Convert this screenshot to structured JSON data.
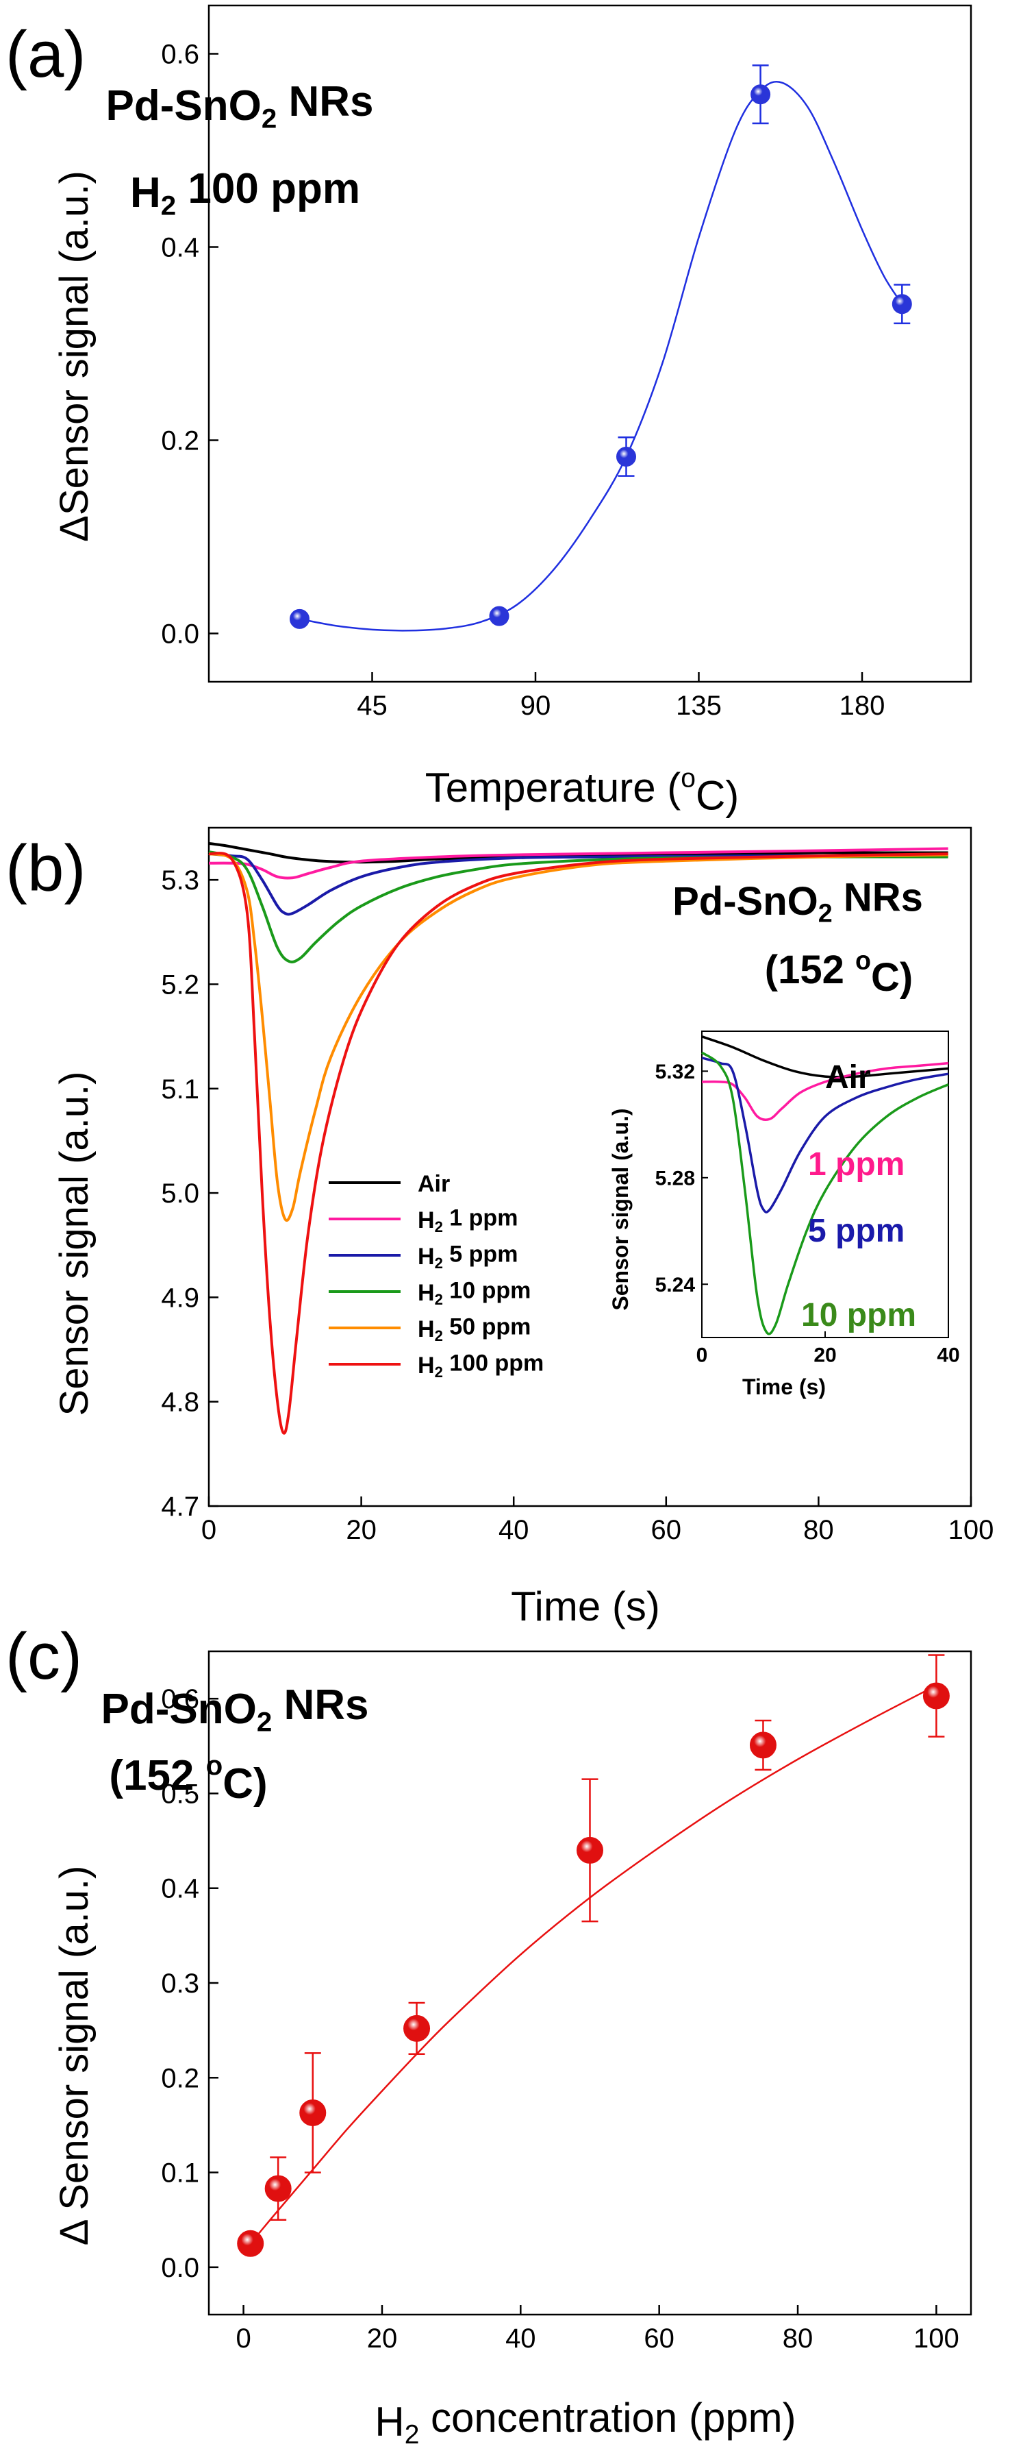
{
  "colors": {
    "axis": "#000000",
    "panel_a_series": "#1f2fe0",
    "panel_a_marker": "#2a35d8",
    "panel_c_series": "#e81010",
    "panel_c_marker": "#e01010",
    "air": "#000000",
    "h2_1": "#ff1aa0",
    "h2_5": "#1a1aa8",
    "h2_10": "#1a9a1a",
    "h2_50": "#ff8c00",
    "h2_100": "#ee1111",
    "inset_1ppm_text": "#ff1a8c",
    "inset_5ppm_text": "#1a1aaa",
    "inset_10ppm_text": "#3a8a1a"
  },
  "chart_data": [
    {
      "panel": "(a)",
      "type": "scatter",
      "title": "Pd-SnO2 NRs",
      "subtitle": "H2 100 ppm",
      "title_parts": [
        {
          "t": "Pd-SnO"
        },
        {
          "t": "2",
          "sub": true
        },
        {
          "t": " NRs"
        }
      ],
      "subtitle_parts": [
        {
          "t": "H"
        },
        {
          "t": "2",
          "sub": true
        },
        {
          "t": " 100 ppm"
        }
      ],
      "xlabel": "Temperature (oC)",
      "xlabel_parts": [
        {
          "t": "Temperature ("
        },
        {
          "t": "o",
          "sup": true
        },
        {
          "t": "C)"
        }
      ],
      "ylabel": "ΔSensor signal (a.u.)",
      "xlim": [
        0,
        210
      ],
      "ylim": [
        -0.05,
        0.65
      ],
      "xticks": [
        45,
        90,
        135,
        180
      ],
      "xticklabels": [
        "45",
        "90",
        "135",
        "180"
      ],
      "yticks": [
        0.0,
        0.2,
        0.4,
        0.6
      ],
      "yticklabels": [
        "0.0",
        "0.2",
        "0.4",
        "0.6"
      ],
      "grid": false,
      "points": [
        {
          "x": 25,
          "y": 0.015,
          "err": 0.0
        },
        {
          "x": 80,
          "y": 0.018,
          "err": 0.0
        },
        {
          "x": 115,
          "y": 0.183,
          "err": 0.02
        },
        {
          "x": 152,
          "y": 0.558,
          "err": 0.03
        },
        {
          "x": 191,
          "y": 0.341,
          "err": 0.02
        }
      ],
      "fit": [
        {
          "x": 25,
          "y": 0.015
        },
        {
          "x": 35,
          "y": 0.008
        },
        {
          "x": 45,
          "y": 0.004
        },
        {
          "x": 55,
          "y": 0.003
        },
        {
          "x": 65,
          "y": 0.005
        },
        {
          "x": 75,
          "y": 0.012
        },
        {
          "x": 85,
          "y": 0.03
        },
        {
          "x": 95,
          "y": 0.066
        },
        {
          "x": 105,
          "y": 0.118
        },
        {
          "x": 115,
          "y": 0.183
        },
        {
          "x": 125,
          "y": 0.28
        },
        {
          "x": 135,
          "y": 0.41
        },
        {
          "x": 145,
          "y": 0.52
        },
        {
          "x": 152,
          "y": 0.562
        },
        {
          "x": 158,
          "y": 0.57
        },
        {
          "x": 165,
          "y": 0.545
        },
        {
          "x": 172,
          "y": 0.49
        },
        {
          "x": 180,
          "y": 0.418
        },
        {
          "x": 186,
          "y": 0.37
        },
        {
          "x": 191,
          "y": 0.341
        }
      ]
    },
    {
      "panel": "(b)",
      "type": "line",
      "title": "Pd-SnO2 NRs",
      "subtitle": "(152 oC)",
      "title_parts": [
        {
          "t": "Pd-SnO"
        },
        {
          "t": "2",
          "sub": true
        },
        {
          "t": " NRs"
        }
      ],
      "subtitle_parts": [
        {
          "t": "(152 "
        },
        {
          "t": "o",
          "sup": true
        },
        {
          "t": "C)"
        }
      ],
      "xlabel": "Time (s)",
      "ylabel": "Sensor signal (a.u.)",
      "xlim": [
        0,
        100
      ],
      "ylim": [
        4.7,
        5.35
      ],
      "xticks": [
        0,
        20,
        40,
        60,
        80,
        100
      ],
      "xticklabels": [
        "0",
        "20",
        "40",
        "60",
        "80",
        "100"
      ],
      "yticks": [
        4.7,
        4.8,
        4.9,
        5.0,
        5.1,
        5.2,
        5.3
      ],
      "yticklabels": [
        "4.7",
        "4.8",
        "4.9",
        "5.0",
        "5.1",
        "5.2",
        "5.3"
      ],
      "grid": false,
      "legend_position": "bottom-left",
      "series": [
        {
          "name": "Air",
          "label_parts": [
            {
              "t": "Air"
            }
          ],
          "color_key": "air",
          "x": [
            0,
            2,
            5,
            8,
            10,
            12,
            15,
            20,
            25,
            30,
            40,
            50,
            60,
            70,
            80,
            90,
            97
          ],
          "y": [
            5.335,
            5.333,
            5.329,
            5.325,
            5.322,
            5.32,
            5.318,
            5.317,
            5.318,
            5.32,
            5.322,
            5.323,
            5.324,
            5.325,
            5.326,
            5.326,
            5.326
          ]
        },
        {
          "name": "H2 1 ppm",
          "label_parts": [
            {
              "t": "H"
            },
            {
              "t": "2",
              "sub": true
            },
            {
              "t": " 1 ppm"
            }
          ],
          "color_key": "h2_1",
          "x": [
            0,
            3,
            5,
            7,
            9,
            11,
            13,
            16,
            20,
            30,
            40,
            60,
            80,
            97
          ],
          "y": [
            5.316,
            5.316,
            5.315,
            5.31,
            5.303,
            5.302,
            5.306,
            5.312,
            5.318,
            5.322,
            5.324,
            5.326,
            5.328,
            5.33
          ]
        },
        {
          "name": "H2 5 ppm",
          "label_parts": [
            {
              "t": "H"
            },
            {
              "t": "2",
              "sub": true
            },
            {
              "t": " 5 ppm"
            }
          ],
          "color_key": "h2_5",
          "x": [
            0,
            3,
            5,
            7,
            9,
            10,
            11,
            13,
            16,
            20,
            25,
            30,
            40,
            50,
            70,
            97
          ],
          "y": [
            5.325,
            5.323,
            5.32,
            5.3,
            5.275,
            5.268,
            5.268,
            5.276,
            5.29,
            5.303,
            5.312,
            5.317,
            5.321,
            5.322,
            5.323,
            5.323
          ]
        },
        {
          "name": "H2 10 ppm",
          "label_parts": [
            {
              "t": "H"
            },
            {
              "t": "2",
              "sub": true
            },
            {
              "t": " 10 ppm"
            }
          ],
          "color_key": "h2_10",
          "x": [
            0,
            3,
            5,
            7,
            9,
            10.5,
            12,
            14,
            17,
            20,
            25,
            30,
            35,
            40,
            50,
            60,
            80,
            97
          ],
          "y": [
            5.327,
            5.322,
            5.31,
            5.275,
            5.235,
            5.222,
            5.225,
            5.24,
            5.26,
            5.275,
            5.292,
            5.303,
            5.31,
            5.315,
            5.319,
            5.321,
            5.322,
            5.322
          ]
        },
        {
          "name": "H2 50 ppm",
          "label_parts": [
            {
              "t": "H"
            },
            {
              "t": "2",
              "sub": true
            },
            {
              "t": " 50 ppm"
            }
          ],
          "color_key": "h2_50",
          "x": [
            0,
            3,
            5,
            6,
            7,
            8,
            9,
            10,
            11,
            12,
            14,
            16,
            20,
            25,
            30,
            35,
            40,
            50,
            60,
            80,
            97
          ],
          "y": [
            5.325,
            5.32,
            5.29,
            5.24,
            5.17,
            5.09,
            5.01,
            4.975,
            4.985,
            5.02,
            5.08,
            5.13,
            5.19,
            5.24,
            5.27,
            5.29,
            5.302,
            5.314,
            5.318,
            5.322,
            5.324
          ]
        },
        {
          "name": "H2 100 ppm",
          "label_parts": [
            {
              "t": "H"
            },
            {
              "t": "2",
              "sub": true
            },
            {
              "t": " 100 ppm"
            }
          ],
          "color_key": "h2_100",
          "x": [
            0,
            3,
            5,
            6,
            7,
            8,
            9,
            9.8,
            10.5,
            11.5,
            13,
            15,
            18,
            21,
            25,
            30,
            35,
            40,
            50,
            60,
            80,
            97
          ],
          "y": [
            5.325,
            5.32,
            5.27,
            5.15,
            5.0,
            4.88,
            4.8,
            4.77,
            4.79,
            4.86,
            4.96,
            5.05,
            5.135,
            5.19,
            5.24,
            5.275,
            5.295,
            5.306,
            5.316,
            5.32,
            5.323,
            5.325
          ]
        }
      ],
      "inset": {
        "type": "line",
        "xlabel": "Time (s)",
        "ylabel": "Sensor signal (a.u.)",
        "xlim": [
          0,
          40
        ],
        "ylim": [
          5.22,
          5.335
        ],
        "xticks": [
          0,
          20,
          40
        ],
        "xticklabels": [
          "0",
          "20",
          "40"
        ],
        "yticks": [
          5.24,
          5.28,
          5.32
        ],
        "yticklabels": [
          "5.24",
          "5.28",
          "5.32"
        ],
        "series": [
          {
            "name": "Air",
            "color_key": "air",
            "text_color_key": "air",
            "x": [
              0,
              5,
              10,
              15,
              20,
              25,
              30,
              35,
              40
            ],
            "y": [
              5.333,
              5.329,
              5.324,
              5.32,
              5.318,
              5.318,
              5.319,
              5.32,
              5.321
            ]
          },
          {
            "name": "1 ppm",
            "color_key": "h2_1",
            "text_color_key": "inset_1ppm_text",
            "x": [
              0,
              3,
              5,
              7,
              9,
              11,
              13,
              16,
              20,
              25,
              30,
              35,
              40
            ],
            "y": [
              5.316,
              5.316,
              5.315,
              5.31,
              5.303,
              5.302,
              5.306,
              5.312,
              5.316,
              5.319,
              5.321,
              5.322,
              5.323
            ]
          },
          {
            "name": "5 ppm",
            "color_key": "h2_5",
            "text_color_key": "inset_5ppm_text",
            "x": [
              0,
              3,
              5,
              7,
              9,
              10,
              11,
              13,
              16,
              20,
              25,
              30,
              35,
              40
            ],
            "y": [
              5.325,
              5.323,
              5.32,
              5.3,
              5.275,
              5.268,
              5.268,
              5.276,
              5.29,
              5.303,
              5.31,
              5.314,
              5.317,
              5.319
            ]
          },
          {
            "name": "10 ppm",
            "color_key": "h2_10",
            "text_color_key": "inset_10ppm_text",
            "x": [
              0,
              3,
              5,
              7,
              9,
              10.5,
              12,
              14,
              17,
              20,
              25,
              30,
              35,
              40
            ],
            "y": [
              5.327,
              5.322,
              5.31,
              5.275,
              5.235,
              5.222,
              5.225,
              5.24,
              5.26,
              5.275,
              5.292,
              5.303,
              5.31,
              5.315
            ]
          }
        ]
      }
    },
    {
      "panel": "(c)",
      "type": "scatter",
      "title": "Pd-SnO2 NRs",
      "subtitle": "(152 oC)",
      "title_parts": [
        {
          "t": "Pd-SnO"
        },
        {
          "t": "2",
          "sub": true
        },
        {
          "t": " NRs"
        }
      ],
      "subtitle_parts": [
        {
          "t": "(152 "
        },
        {
          "t": "o",
          "sup": true
        },
        {
          "t": "C)"
        }
      ],
      "xlabel": "H2 concentration (ppm)",
      "xlabel_parts": [
        {
          "t": "H"
        },
        {
          "t": "2",
          "sub": true
        },
        {
          "t": " concentration (ppm)"
        }
      ],
      "ylabel": "Δ Sensor signal (a.u.)",
      "xlim": [
        -5,
        105
      ],
      "ylim": [
        -0.05,
        0.65
      ],
      "xticks": [
        0,
        20,
        40,
        60,
        80,
        100
      ],
      "xticklabels": [
        "0",
        "20",
        "40",
        "60",
        "80",
        "100"
      ],
      "yticks": [
        0.0,
        0.1,
        0.2,
        0.3,
        0.4,
        0.5,
        0.6
      ],
      "yticklabels": [
        "0.0",
        "0.1",
        "0.2",
        "0.3",
        "0.4",
        "0.5",
        "0.6"
      ],
      "grid": false,
      "points": [
        {
          "x": 1,
          "y": 0.025,
          "err": 0.0
        },
        {
          "x": 5,
          "y": 0.083,
          "err": 0.033
        },
        {
          "x": 10,
          "y": 0.163,
          "err": 0.063
        },
        {
          "x": 25,
          "y": 0.252,
          "err": 0.027
        },
        {
          "x": 50,
          "y": 0.44,
          "err": 0.075
        },
        {
          "x": 75,
          "y": 0.551,
          "err": 0.026
        },
        {
          "x": 100,
          "y": 0.603,
          "err": 0.043
        }
      ],
      "fit": [
        {
          "x": 1,
          "y": 0.025
        },
        {
          "x": 5,
          "y": 0.06
        },
        {
          "x": 10,
          "y": 0.103
        },
        {
          "x": 15,
          "y": 0.146
        },
        {
          "x": 20,
          "y": 0.186
        },
        {
          "x": 25,
          "y": 0.225
        },
        {
          "x": 30,
          "y": 0.262
        },
        {
          "x": 40,
          "y": 0.33
        },
        {
          "x": 50,
          "y": 0.39
        },
        {
          "x": 60,
          "y": 0.443
        },
        {
          "x": 70,
          "y": 0.492
        },
        {
          "x": 80,
          "y": 0.536
        },
        {
          "x": 90,
          "y": 0.576
        },
        {
          "x": 100,
          "y": 0.614
        }
      ]
    }
  ]
}
